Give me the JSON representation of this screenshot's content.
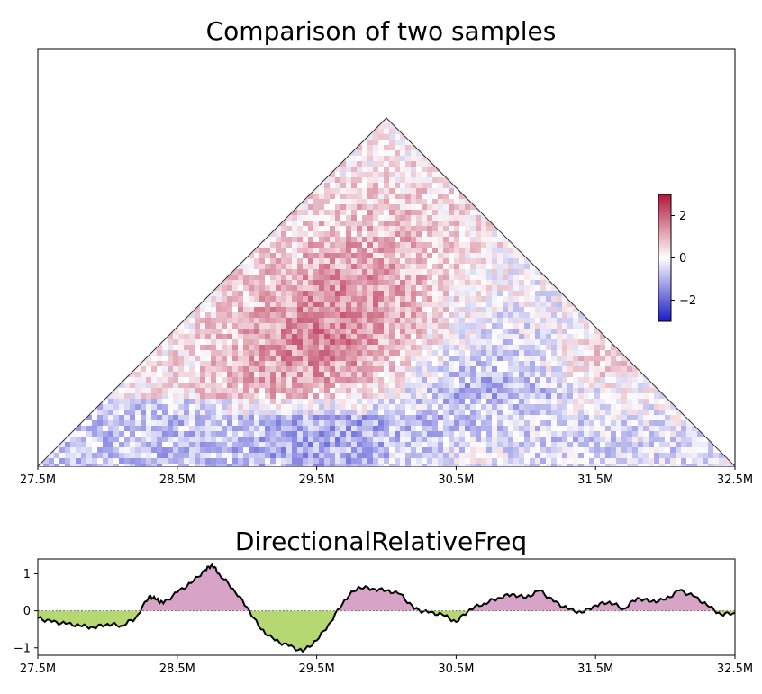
{
  "chart_data": [
    {
      "type": "heatmap",
      "title": "Comparison of two samples",
      "x_ticks": [
        "27.5M",
        "28.5M",
        "29.5M",
        "30.5M",
        "31.5M",
        "32.5M"
      ],
      "xlim": [
        27.5,
        32.5
      ],
      "colorbar": {
        "ticks": [
          "2",
          "0",
          "−2"
        ],
        "range": [
          -3,
          3
        ],
        "cmap": "blue-white-red",
        "low_color": "#1a1ac8",
        "mid_color": "#ffffff",
        "high_color": "#b2163c"
      },
      "regions": [
        {
          "name": "upper-left-band",
          "value": 1.6
        },
        {
          "name": "lower-left-diagonal",
          "value": -0.8
        },
        {
          "name": "mid-lower-domain",
          "value": -1.0
        },
        {
          "name": "right-diagonal-band",
          "value": -0.6
        },
        {
          "name": "right-lower-domains",
          "value": -0.4
        }
      ]
    },
    {
      "type": "area",
      "title": "DirectionalRelativeFreq",
      "xlim": [
        27.5,
        32.5
      ],
      "ylim": [
        -1.2,
        1.4
      ],
      "y_ticks": [
        "1",
        "0",
        "−1"
      ],
      "x_ticks": [
        "27.5M",
        "28.5M",
        "29.5M",
        "30.5M",
        "31.5M",
        "32.5M"
      ],
      "positive_color": "#d7a3c6",
      "negative_color": "#b5d872",
      "x": [
        27.5,
        27.6,
        27.7,
        27.8,
        27.9,
        28.0,
        28.1,
        28.2,
        28.3,
        28.35,
        28.4,
        28.5,
        28.6,
        28.7,
        28.75,
        28.8,
        28.9,
        29.0,
        29.1,
        29.2,
        29.3,
        29.4,
        29.5,
        29.6,
        29.7,
        29.8,
        29.9,
        30.0,
        30.1,
        30.2,
        30.3,
        30.4,
        30.5,
        30.6,
        30.7,
        30.8,
        30.9,
        31.0,
        31.1,
        31.2,
        31.3,
        31.4,
        31.5,
        31.6,
        31.7,
        31.8,
        31.9,
        32.0,
        32.1,
        32.2,
        32.3,
        32.4,
        32.5
      ],
      "y": [
        -0.2,
        -0.3,
        -0.35,
        -0.4,
        -0.45,
        -0.35,
        -0.4,
        -0.2,
        0.4,
        0.3,
        0.2,
        0.5,
        0.75,
        1.1,
        1.25,
        1.0,
        0.6,
        0.1,
        -0.5,
        -0.8,
        -0.95,
        -1.1,
        -0.8,
        -0.3,
        0.3,
        0.65,
        0.6,
        0.55,
        0.45,
        0.05,
        -0.05,
        -0.1,
        -0.3,
        0.05,
        0.2,
        0.35,
        0.45,
        0.35,
        0.55,
        0.25,
        0.05,
        -0.05,
        0.15,
        0.25,
        0.05,
        0.35,
        0.25,
        0.3,
        0.55,
        0.4,
        0.15,
        -0.1,
        -0.05
      ]
    }
  ]
}
